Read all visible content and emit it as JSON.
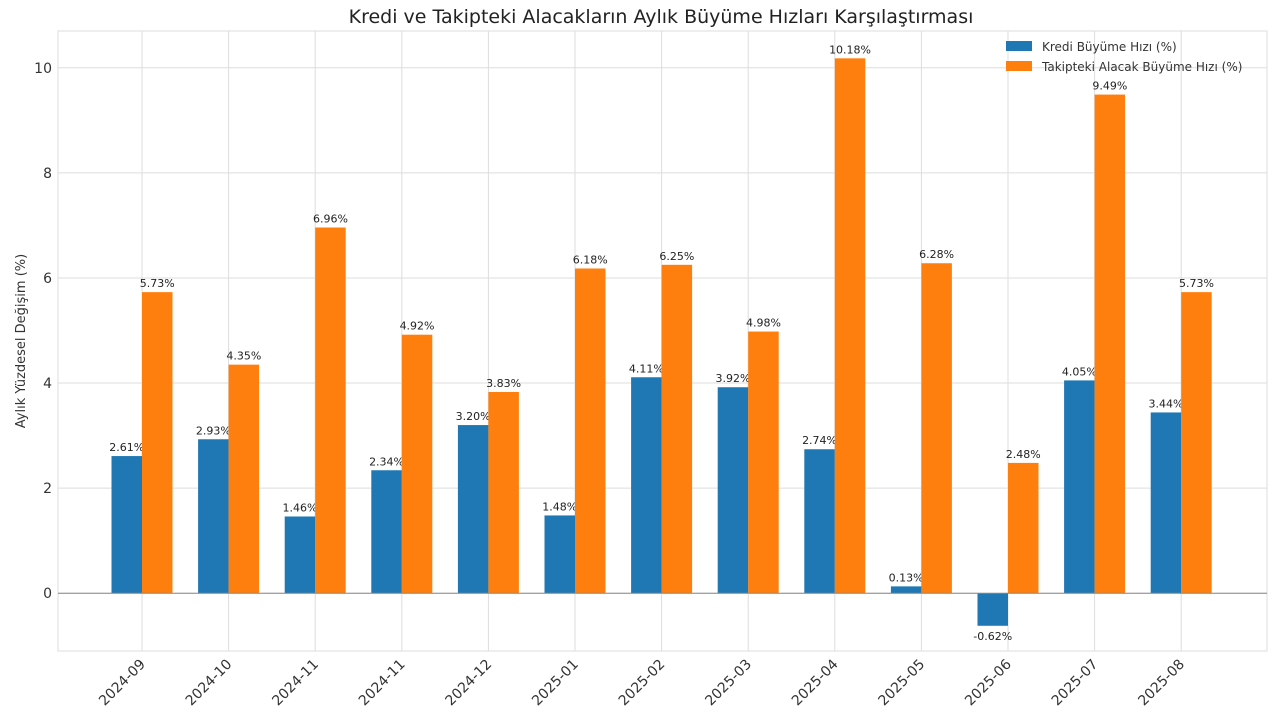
{
  "chart_data": {
    "type": "bar",
    "title": "Kredi ve Takipteki Alacakların Aylık Büyüme Hızları Karşılaştırması",
    "xlabel": "",
    "ylabel": "Aylık Yüzdesel Değişim (%)",
    "categories": [
      "2024-09",
      "2024-10",
      "2024-11",
      "2024-11",
      "2024-12",
      "2025-01",
      "2025-02",
      "2025-03",
      "2025-04",
      "2025-05",
      "2025-06",
      "2025-07",
      "2025-08"
    ],
    "series": [
      {
        "name": "Kredi Büyüme Hızı (%)",
        "color": "#1f77b4",
        "values": [
          2.61,
          2.93,
          1.46,
          2.34,
          3.2,
          1.48,
          4.11,
          3.92,
          2.74,
          0.13,
          -0.62,
          4.05,
          3.44
        ],
        "labels": [
          "2.61%",
          "2.93%",
          "1.46%",
          "2.34%",
          "3.20%",
          "1.48%",
          "4.11%",
          "3.92%",
          "2.74%",
          "0.13%",
          "-0.62%",
          "4.05%",
          "3.44%"
        ]
      },
      {
        "name": "Takipteki Alacak Büyüme Hızı (%)",
        "color": "#ff7f0e",
        "values": [
          5.73,
          4.35,
          6.96,
          4.92,
          3.83,
          6.18,
          6.25,
          4.98,
          10.18,
          6.28,
          2.48,
          9.49,
          5.73
        ],
        "labels": [
          "5.73%",
          "4.35%",
          "6.96%",
          "4.92%",
          "3.83%",
          "6.18%",
          "6.25%",
          "4.98%",
          "10.18%",
          "6.28%",
          "2.48%",
          "9.49%",
          "5.73%"
        ]
      }
    ],
    "ylim": [
      -1.1,
      10.7
    ],
    "yticks": [
      0,
      2,
      4,
      6,
      8,
      10
    ],
    "ytick_labels": [
      "0",
      "2",
      "4",
      "6",
      "8",
      "10"
    ],
    "grid": true,
    "legend_position": "top-right"
  }
}
